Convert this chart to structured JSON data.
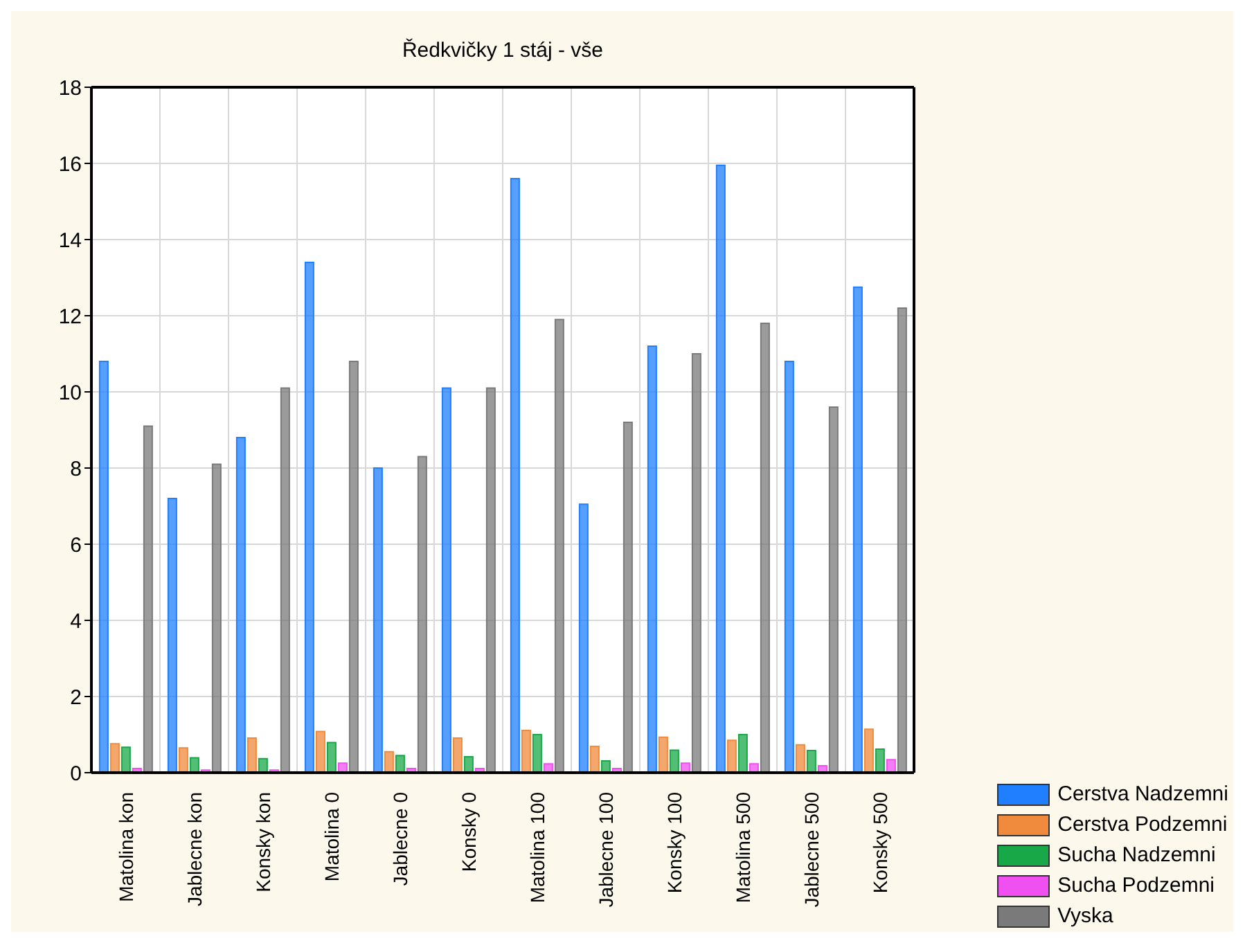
{
  "chart_data": {
    "type": "bar",
    "title": "Ředkvičky 1 stáj - vše",
    "categories": [
      "Matolina kon",
      "Jablecne kon",
      "Konsky kon",
      "Matolina 0",
      "Jablecne 0",
      "Konsky 0",
      "Matolina 100",
      "Jablecne 100",
      "Konsky 100",
      "Matolina 500",
      "Jablecne 500",
      "Konsky 500"
    ],
    "series": [
      {
        "name": "Cerstva Nadzemni",
        "color": "#1f7fff",
        "values": [
          10.8,
          7.2,
          8.8,
          13.4,
          8.0,
          10.1,
          15.6,
          7.05,
          11.2,
          15.95,
          10.8,
          12.75
        ]
      },
      {
        "name": "Cerstva Podzemni",
        "color": "#f08a3c",
        "values": [
          0.76,
          0.65,
          0.91,
          1.08,
          0.55,
          0.91,
          1.11,
          0.69,
          0.93,
          0.85,
          0.73,
          1.14
        ]
      },
      {
        "name": "Sucha Nadzemni",
        "color": "#18a848",
        "values": [
          0.67,
          0.39,
          0.37,
          0.79,
          0.45,
          0.42,
          1.0,
          0.31,
          0.59,
          1.0,
          0.58,
          0.62
        ]
      },
      {
        "name": "Sucha Podzemni",
        "color": "#f050f0",
        "values": [
          0.11,
          0.07,
          0.07,
          0.25,
          0.11,
          0.11,
          0.23,
          0.11,
          0.25,
          0.23,
          0.18,
          0.34
        ]
      },
      {
        "name": "Vyska",
        "color": "#7a7a7a",
        "values": [
          9.1,
          8.1,
          10.1,
          10.8,
          8.3,
          10.1,
          11.9,
          9.2,
          11.0,
          11.8,
          9.6,
          12.2
        ]
      }
    ],
    "ylim": [
      0,
      18
    ],
    "yticks": [
      0,
      2,
      4,
      6,
      8,
      10,
      12,
      14,
      16,
      18
    ],
    "grid": true,
    "legend": "bottom right"
  }
}
